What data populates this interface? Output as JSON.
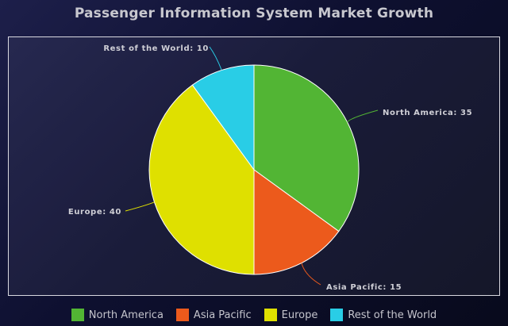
{
  "chart_data": {
    "type": "pie",
    "title": "Passenger Information System Market Growth",
    "legend_position": "bottom",
    "start_angle_deg": 0,
    "direction": "clockwise",
    "slices": [
      {
        "label": "North America",
        "value": 35,
        "color": "#52b534"
      },
      {
        "label": "Asia Pacific",
        "value": 15,
        "color": "#ec5a1c"
      },
      {
        "label": "Europe",
        "value": 40,
        "color": "#dfe000"
      },
      {
        "label": "Rest of the World",
        "value": 10,
        "color": "#29cde6"
      }
    ]
  }
}
